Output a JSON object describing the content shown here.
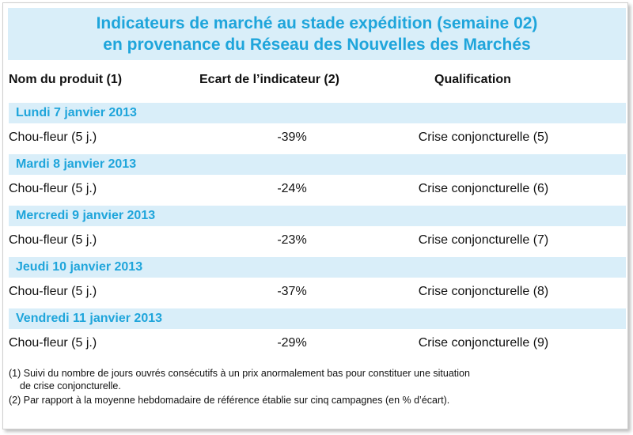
{
  "title": {
    "line1": "Indicateurs de marché au stade expédition (semaine 02)",
    "line2": "en provenance du Réseau des Nouvelles des Marchés"
  },
  "headers": {
    "product": "Nom du produit (1)",
    "gap": "Ecart de l’indicateur (2)",
    "qualification": "Qualification"
  },
  "days": [
    {
      "label": "Lundi 7 janvier 2013",
      "product": "Chou-fleur (5 j.)",
      "gap": "-39%",
      "qualification": "Crise conjoncturelle (5)"
    },
    {
      "label": "Mardi 8 janvier 2013",
      "product": "Chou-fleur (5 j.)",
      "gap": "-24%",
      "qualification": "Crise conjoncturelle (6)"
    },
    {
      "label": "Mercredi 9 janvier 2013",
      "product": "Chou-fleur (5 j.)",
      "gap": "-23%",
      "qualification": "Crise conjoncturelle (7)"
    },
    {
      "label": "Jeudi 10 janvier 2013",
      "product": "Chou-fleur (5 j.)",
      "gap": "-37%",
      "qualification": "Crise conjoncturelle (8)"
    },
    {
      "label": "Vendredi 11 janvier 2013",
      "product": "Chou-fleur (5 j.)",
      "gap": "-29%",
      "qualification": "Crise conjoncturelle (9)"
    }
  ],
  "notes": {
    "note1_line1": "(1) Suivi du nombre de jours ouvrés consécutifs à un prix anormalement bas pour constituer une situation",
    "note1_line2": "de crise conjoncturelle.",
    "note2": "(2) Par rapport à la moyenne hebdomadaire de référence établie sur cinq campagnes (en % d’écart)."
  },
  "colors": {
    "accent": "#1fa5db",
    "band": "#d9eef9"
  }
}
